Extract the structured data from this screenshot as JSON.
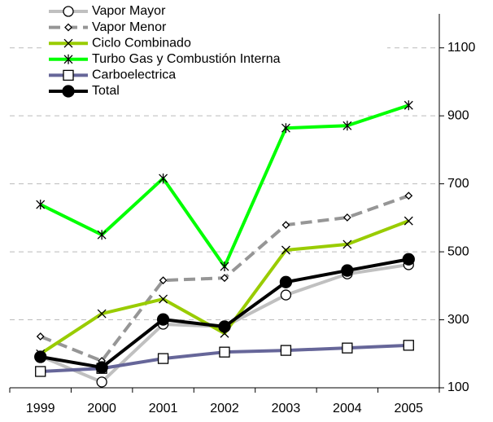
{
  "chart_data": {
    "type": "line",
    "categories": [
      "1999",
      "2000",
      "2001",
      "2002",
      "2003",
      "2004",
      "2005"
    ],
    "ylim": [
      100,
      1200
    ],
    "yticks": [
      100,
      300,
      500,
      700,
      900,
      1100
    ],
    "grid": true,
    "y_axis_side": "right",
    "legend": "top-left",
    "series": [
      {
        "name": "Vapor Mayor",
        "color": "#c0c0c0",
        "marker": "circle",
        "dashed": false,
        "values": [
          193,
          117,
          287,
          280,
          373,
          435,
          462
        ]
      },
      {
        "name": "Vapor Menor",
        "color": "#969696",
        "marker": "diamond",
        "dashed": true,
        "values": [
          251,
          179,
          416,
          423,
          579,
          601,
          665
        ]
      },
      {
        "name": "Ciclo Combinado",
        "color": "#99cc00",
        "marker": "x",
        "dashed": false,
        "values": [
          200,
          318,
          361,
          260,
          505,
          522,
          591
        ]
      },
      {
        "name": "Turbo Gas y Combustión Interna",
        "color": "#00ff00",
        "marker": "asterisk",
        "dashed": false,
        "values": [
          639,
          550,
          716,
          457,
          864,
          871,
          931
        ]
      },
      {
        "name": "Carboelectrica",
        "color": "#666699",
        "marker": "square",
        "dashed": false,
        "values": [
          148,
          157,
          186,
          205,
          210,
          217,
          225
        ]
      },
      {
        "name": "Total",
        "color": "#000000",
        "marker": "dot",
        "dashed": false,
        "values": [
          191,
          160,
          301,
          280,
          411,
          445,
          478
        ]
      }
    ]
  }
}
